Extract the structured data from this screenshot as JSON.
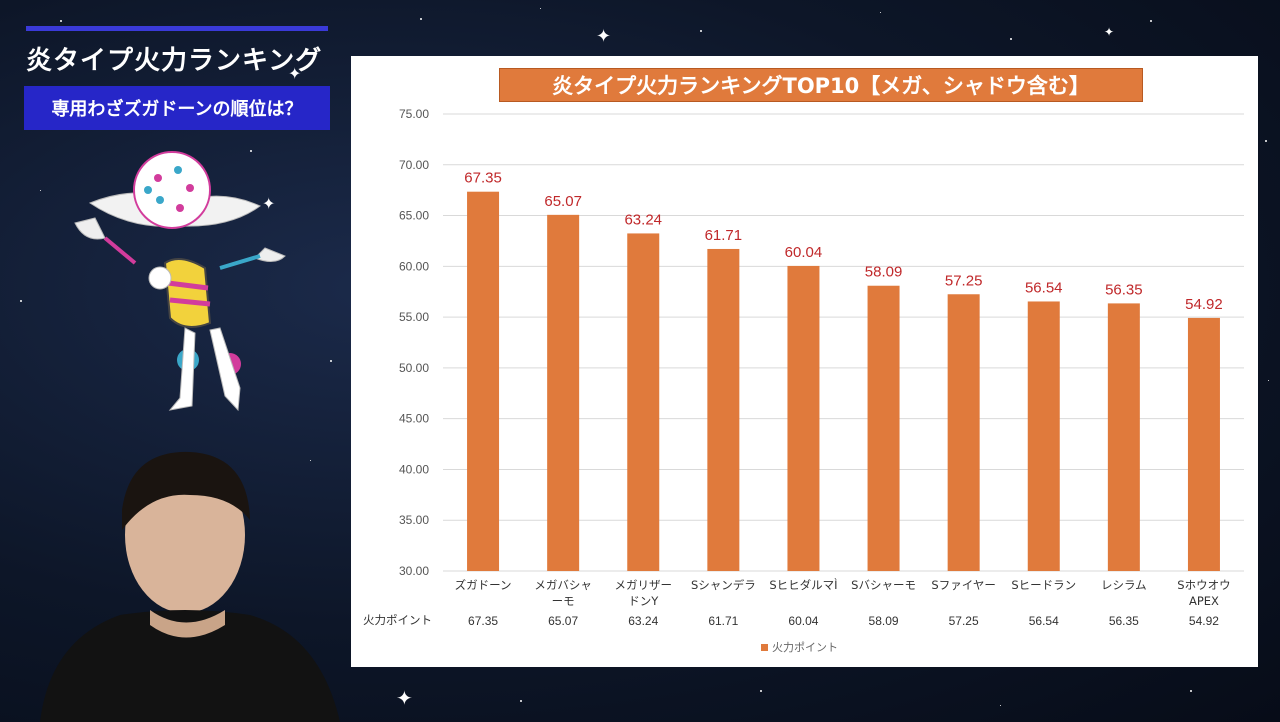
{
  "header": {
    "title": "炎タイプ火力ランキング",
    "subtitle": "専用わざズガドーンの順位は？"
  },
  "colors": {
    "bar": "#e07a3c",
    "data_label": "#c0282a",
    "subtitle_box": "#2626c8",
    "accent_bar": "#3a3ad8"
  },
  "images": {
    "mascot": "zugadone-character-illustration",
    "presenter": "presenter-photo"
  },
  "chart_data": {
    "type": "bar",
    "title": "炎タイプ火力ランキングTOP10【メガ、シャドウ含む】",
    "categories": [
      [
        "ズガドーン"
      ],
      [
        "メガバシャ",
        "ーモ"
      ],
      [
        "メガリザー",
        "ドンY"
      ],
      [
        "Sシャンデラ"
      ],
      [
        "SヒヒダルマÌ"
      ],
      [
        "Sバシャーモ"
      ],
      [
        "Sファイヤー"
      ],
      [
        "Sヒードラン"
      ],
      [
        "レシラム"
      ],
      [
        "Sホウオウ",
        "APEX"
      ]
    ],
    "series": [
      {
        "name": "火力ポイント",
        "values": [
          67.35,
          65.07,
          63.24,
          61.71,
          60.04,
          58.09,
          57.25,
          56.54,
          56.35,
          54.92
        ],
        "labels": [
          "67.35",
          "65.07",
          "63.24",
          "61.71",
          "60.04",
          "58.09",
          "57.25",
          "56.54",
          "56.35",
          "54.92"
        ]
      }
    ],
    "ylim": [
      30,
      75
    ],
    "yticks": [
      "30.00",
      "35.00",
      "40.00",
      "45.00",
      "50.00",
      "55.00",
      "60.00",
      "65.00",
      "70.00",
      "75.00"
    ],
    "ytick_values": [
      30,
      35,
      40,
      45,
      50,
      55,
      60,
      65,
      70,
      75
    ],
    "grid": true,
    "legend": "bottom",
    "data_table": true
  }
}
